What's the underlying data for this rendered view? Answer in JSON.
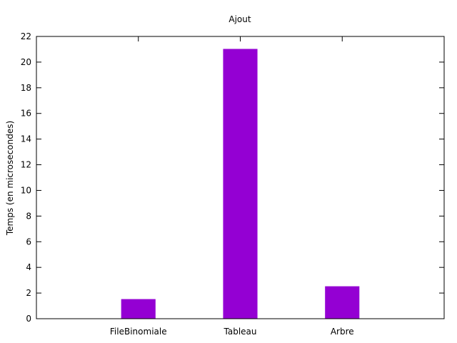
{
  "chart_data": {
    "type": "bar",
    "title": "Ajout",
    "xlabel": "",
    "ylabel": "Temps (en microsecondes)",
    "categories": [
      "FileBinomiale",
      "Tableau",
      "Arbre"
    ],
    "values": [
      1.5,
      21,
      2.5
    ],
    "ylim": [
      0,
      22
    ],
    "yticks": [
      0,
      2,
      4,
      6,
      8,
      10,
      12,
      14,
      16,
      18,
      20,
      22
    ],
    "ytick_labels": [
      "0",
      "2",
      "4",
      "6",
      "8",
      "10",
      "12",
      "14",
      "16",
      "18",
      "20",
      "22"
    ],
    "grid": false,
    "legend": "none",
    "bar_color": "#9400d3"
  }
}
